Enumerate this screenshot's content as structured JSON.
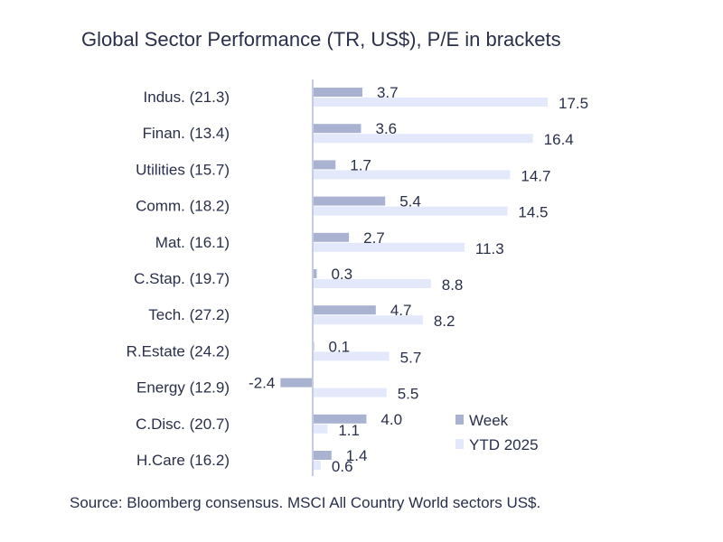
{
  "title": "Global Sector Performance (TR, US$), P/E in brackets",
  "source": "Source: Bloomberg consensus. MSCI All Country World sectors US$.",
  "colors": {
    "week": "#aab2d2",
    "ytd": "#e3e8fb",
    "axis": "#c5cbe3",
    "text": "#2a2f4a"
  },
  "chart_data": {
    "type": "bar",
    "orientation": "horizontal",
    "title": "Global Sector Performance (TR, US$), P/E in brackets",
    "categories": [
      "Indus. (21.3)",
      "Finan. (13.4)",
      "Utilities (15.7)",
      "Comm. (18.2)",
      "Mat. (16.1)",
      "C.Stap. (19.7)",
      "Tech. (27.2)",
      "R.Estate (24.2)",
      "Energy (12.9)",
      "C.Disc. (20.7)",
      "H.Care (16.2)"
    ],
    "series": [
      {
        "name": "Week",
        "values": [
          3.7,
          3.6,
          1.7,
          5.4,
          2.7,
          0.3,
          4.7,
          0.1,
          -2.4,
          4.0,
          1.4
        ]
      },
      {
        "name": "YTD 2025",
        "values": [
          17.5,
          16.4,
          14.7,
          14.5,
          11.3,
          8.8,
          8.2,
          5.7,
          5.5,
          1.1,
          0.6
        ]
      }
    ],
    "xlim": [
      -2.4,
      17.5
    ],
    "legend": "bottom-right",
    "grid": false
  }
}
